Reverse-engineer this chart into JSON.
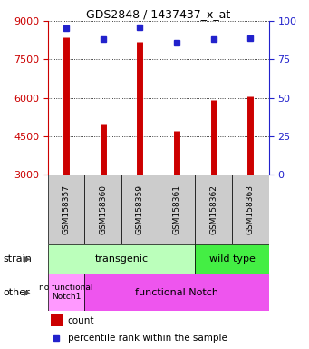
{
  "title": "GDS2848 / 1437437_x_at",
  "samples": [
    "GSM158357",
    "GSM158360",
    "GSM158359",
    "GSM158361",
    "GSM158362",
    "GSM158363"
  ],
  "counts": [
    8350,
    5000,
    8200,
    4700,
    5900,
    6050
  ],
  "percentiles": [
    95,
    88,
    96,
    86,
    88,
    89
  ],
  "ylim_left": [
    3000,
    9000
  ],
  "ylim_right": [
    0,
    100
  ],
  "yticks_left": [
    3000,
    4500,
    6000,
    7500,
    9000
  ],
  "yticks_right": [
    0,
    25,
    50,
    75,
    100
  ],
  "bar_color": "#cc0000",
  "dot_color": "#2222cc",
  "bar_base": 3000,
  "bar_linewidth": 5,
  "dot_size": 5,
  "color_transgenic": "#bbffbb",
  "color_wildtype": "#44ee44",
  "color_nofunc": "#ff99ff",
  "color_func": "#ee55ee",
  "tick_label_area_color": "#cccccc",
  "left_axis_color": "#cc0000",
  "right_axis_color": "#2222cc",
  "strain_label_transgenic": "transgenic",
  "strain_label_wildtype": "wild type",
  "other_label_nofunc": "no functional\nNotch1",
  "other_label_func": "functional Notch",
  "legend_count": "count",
  "legend_percentile": "percentile rank within the sample",
  "grid_dotted_yticks": [
    4500,
    6000,
    7500,
    9000
  ],
  "figsize": [
    3.41,
    3.84
  ],
  "dpi": 100
}
